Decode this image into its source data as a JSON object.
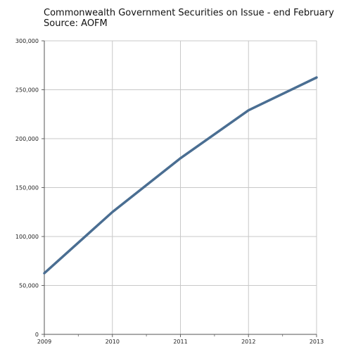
{
  "chart_data": {
    "type": "line",
    "title": "Commonwealth Government Securities on Issue - end February",
    "subtitle": "Source: AOFM",
    "x": [
      "2009",
      "2010",
      "2011",
      "2012",
      "2013"
    ],
    "series": [
      {
        "values": [
          62500,
          125000,
          180000,
          229000,
          262500
        ]
      }
    ],
    "ylim": [
      0,
      300000
    ],
    "yticks": [
      "0",
      "50,000",
      "100,000",
      "150,000",
      "200,000",
      "250,000",
      "300,000"
    ],
    "grid": true,
    "line_color": "#4a6e92"
  }
}
